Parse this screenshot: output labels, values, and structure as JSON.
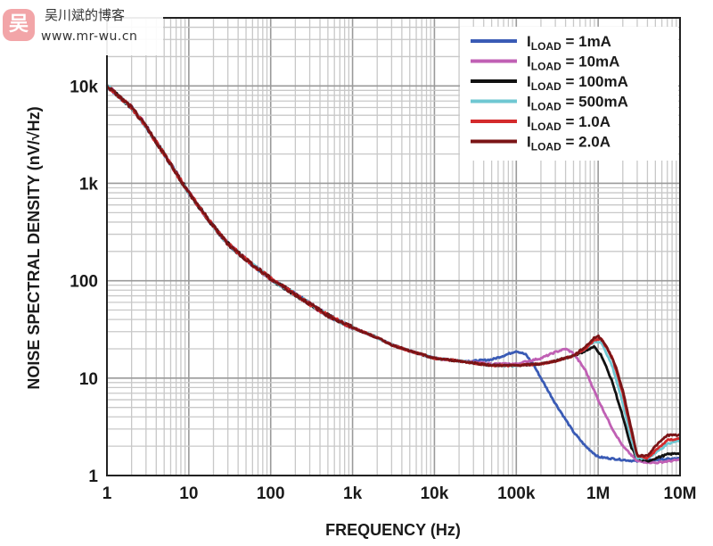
{
  "watermark": {
    "logo_char": "吴",
    "title": "吴川斌的博客",
    "url": "www.mr-wu.cn"
  },
  "chart_data": {
    "type": "line",
    "xlabel": "FREQUENCY (Hz)",
    "ylabel": "NOISE SPECTRAL DENSITY (nV/√Hz)",
    "x_scale": "log",
    "y_scale": "log",
    "xlim": [
      1,
      10000000
    ],
    "ylim": [
      1,
      50000
    ],
    "x_ticks": [
      {
        "value": 1,
        "label": "1"
      },
      {
        "value": 10,
        "label": "10"
      },
      {
        "value": 100,
        "label": "100"
      },
      {
        "value": 1000,
        "label": "1k"
      },
      {
        "value": 10000,
        "label": "10k"
      },
      {
        "value": 100000,
        "label": "100k"
      },
      {
        "value": 1000000,
        "label": "1M"
      },
      {
        "value": 10000000,
        "label": "10M"
      }
    ],
    "y_ticks": [
      {
        "value": 1,
        "label": "1"
      },
      {
        "value": 10,
        "label": "10"
      },
      {
        "value": 100,
        "label": "100"
      },
      {
        "value": 1000,
        "label": "1k"
      },
      {
        "value": 10000,
        "label": "10k"
      }
    ],
    "grid": true,
    "legend_position": "top-right",
    "series": [
      {
        "name": "1mA",
        "legend_main": "I",
        "legend_sub": "LOAD",
        "legend_rest": " = 1mA",
        "color": "#3a5bb5",
        "points": [
          [
            1,
            10000
          ],
          [
            2,
            6000
          ],
          [
            3,
            3800
          ],
          [
            5,
            2000
          ],
          [
            10,
            800
          ],
          [
            20,
            360
          ],
          [
            30,
            240
          ],
          [
            50,
            165
          ],
          [
            100,
            105
          ],
          [
            200,
            72
          ],
          [
            300,
            58
          ],
          [
            500,
            44
          ],
          [
            1000,
            33
          ],
          [
            2000,
            26
          ],
          [
            3000,
            22
          ],
          [
            5000,
            19
          ],
          [
            10000,
            16
          ],
          [
            20000,
            15
          ],
          [
            30000,
            15
          ],
          [
            50000,
            15.5
          ],
          [
            70000,
            17
          ],
          [
            100000,
            19
          ],
          [
            130000,
            17.5
          ],
          [
            160000,
            14
          ],
          [
            200000,
            10
          ],
          [
            300000,
            5.5
          ],
          [
            500000,
            2.8
          ],
          [
            700000,
            2
          ],
          [
            1000000,
            1.55
          ],
          [
            2000000,
            1.45
          ],
          [
            3000000,
            1.4
          ],
          [
            5000000,
            1.45
          ],
          [
            10000000,
            1.5
          ]
        ]
      },
      {
        "name": "10mA",
        "legend_main": "I",
        "legend_sub": "LOAD",
        "legend_rest": " = 10mA",
        "color": "#c060b4",
        "points": [
          [
            1,
            10000
          ],
          [
            2,
            6200
          ],
          [
            3,
            3900
          ],
          [
            5,
            2000
          ],
          [
            10,
            800
          ],
          [
            20,
            360
          ],
          [
            30,
            240
          ],
          [
            50,
            165
          ],
          [
            100,
            105
          ],
          [
            200,
            72
          ],
          [
            300,
            58
          ],
          [
            500,
            44
          ],
          [
            1000,
            33
          ],
          [
            2000,
            26
          ],
          [
            3000,
            22
          ],
          [
            5000,
            19
          ],
          [
            10000,
            16
          ],
          [
            20000,
            15
          ],
          [
            50000,
            14
          ],
          [
            100000,
            14
          ],
          [
            200000,
            16
          ],
          [
            300000,
            18.5
          ],
          [
            400000,
            20
          ],
          [
            500000,
            18
          ],
          [
            700000,
            12
          ],
          [
            1000000,
            6
          ],
          [
            1500000,
            3
          ],
          [
            2000000,
            2
          ],
          [
            3000000,
            1.4
          ],
          [
            5000000,
            1.35
          ],
          [
            10000000,
            1.45
          ]
        ]
      },
      {
        "name": "100mA",
        "legend_main": "I",
        "legend_sub": "LOAD",
        "legend_rest": " = 100mA",
        "color": "#111111",
        "points": [
          [
            1,
            10000
          ],
          [
            2,
            6000
          ],
          [
            3,
            3800
          ],
          [
            5,
            2000
          ],
          [
            10,
            800
          ],
          [
            20,
            360
          ],
          [
            30,
            240
          ],
          [
            50,
            165
          ],
          [
            100,
            105
          ],
          [
            200,
            72
          ],
          [
            300,
            58
          ],
          [
            500,
            44
          ],
          [
            1000,
            33
          ],
          [
            2000,
            26
          ],
          [
            3000,
            22
          ],
          [
            5000,
            19
          ],
          [
            10000,
            16
          ],
          [
            20000,
            15
          ],
          [
            50000,
            13.5
          ],
          [
            100000,
            13.5
          ],
          [
            200000,
            14
          ],
          [
            300000,
            15
          ],
          [
            500000,
            17
          ],
          [
            700000,
            19
          ],
          [
            900000,
            21
          ],
          [
            1100000,
            17
          ],
          [
            1500000,
            9
          ],
          [
            2000000,
            4
          ],
          [
            2500000,
            2
          ],
          [
            3000000,
            1.5
          ],
          [
            4000000,
            1.4
          ],
          [
            5000000,
            1.5
          ],
          [
            7000000,
            1.65
          ],
          [
            10000000,
            1.7
          ]
        ]
      },
      {
        "name": "500mA",
        "legend_main": "I",
        "legend_sub": "LOAD",
        "legend_rest": " = 500mA",
        "color": "#6fc7d2",
        "points": [
          [
            1,
            10000
          ],
          [
            2,
            6000
          ],
          [
            3,
            3800
          ],
          [
            5,
            2000
          ],
          [
            10,
            800
          ],
          [
            20,
            360
          ],
          [
            30,
            240
          ],
          [
            50,
            165
          ],
          [
            100,
            105
          ],
          [
            200,
            72
          ],
          [
            300,
            58
          ],
          [
            500,
            44
          ],
          [
            1000,
            33
          ],
          [
            2000,
            26
          ],
          [
            3000,
            22
          ],
          [
            5000,
            19
          ],
          [
            10000,
            16
          ],
          [
            20000,
            15
          ],
          [
            50000,
            13.5
          ],
          [
            100000,
            13.5
          ],
          [
            200000,
            14
          ],
          [
            300000,
            15
          ],
          [
            500000,
            17
          ],
          [
            700000,
            20
          ],
          [
            900000,
            24
          ],
          [
            1100000,
            23
          ],
          [
            1500000,
            13
          ],
          [
            2000000,
            5.5
          ],
          [
            2500000,
            2.5
          ],
          [
            3000000,
            1.5
          ],
          [
            4000000,
            1.5
          ],
          [
            5000000,
            1.7
          ],
          [
            7000000,
            2.1
          ],
          [
            10000000,
            2.3
          ]
        ]
      },
      {
        "name": "1.0A",
        "legend_main": "I",
        "legend_sub": "LOAD",
        "legend_rest": " = 1.0A",
        "color": "#d42a2c",
        "points": [
          [
            1,
            10000
          ],
          [
            2,
            6000
          ],
          [
            3,
            3800
          ],
          [
            5,
            2000
          ],
          [
            10,
            800
          ],
          [
            20,
            360
          ],
          [
            30,
            240
          ],
          [
            50,
            165
          ],
          [
            100,
            105
          ],
          [
            200,
            72
          ],
          [
            300,
            58
          ],
          [
            500,
            44
          ],
          [
            1000,
            33
          ],
          [
            2000,
            26
          ],
          [
            3000,
            22
          ],
          [
            5000,
            19
          ],
          [
            10000,
            16
          ],
          [
            20000,
            15
          ],
          [
            50000,
            13.5
          ],
          [
            100000,
            13.5
          ],
          [
            200000,
            14
          ],
          [
            300000,
            15
          ],
          [
            500000,
            17
          ],
          [
            700000,
            20
          ],
          [
            900000,
            25
          ],
          [
            1100000,
            25
          ],
          [
            1500000,
            16
          ],
          [
            2000000,
            7
          ],
          [
            2500000,
            3
          ],
          [
            3000000,
            1.6
          ],
          [
            4000000,
            1.5
          ],
          [
            5000000,
            1.8
          ],
          [
            7000000,
            2.3
          ],
          [
            10000000,
            2.4
          ]
        ]
      },
      {
        "name": "2.0A",
        "legend_main": "I",
        "legend_sub": "LOAD",
        "legend_rest": " = 2.0A",
        "color": "#7a1416",
        "points": [
          [
            1,
            10000
          ],
          [
            2,
            6000
          ],
          [
            3,
            3800
          ],
          [
            5,
            2000
          ],
          [
            10,
            800
          ],
          [
            20,
            360
          ],
          [
            30,
            240
          ],
          [
            50,
            165
          ],
          [
            100,
            105
          ],
          [
            200,
            72
          ],
          [
            300,
            58
          ],
          [
            500,
            44
          ],
          [
            1000,
            33
          ],
          [
            2000,
            26
          ],
          [
            3000,
            22
          ],
          [
            5000,
            19
          ],
          [
            10000,
            16
          ],
          [
            20000,
            15
          ],
          [
            50000,
            13.5
          ],
          [
            100000,
            13.5
          ],
          [
            200000,
            14
          ],
          [
            300000,
            15
          ],
          [
            500000,
            17
          ],
          [
            700000,
            21
          ],
          [
            900000,
            26
          ],
          [
            1000000,
            27
          ],
          [
            1200000,
            23
          ],
          [
            1600000,
            14
          ],
          [
            2000000,
            7.5
          ],
          [
            2500000,
            3.2
          ],
          [
            3000000,
            1.6
          ],
          [
            4000000,
            1.6
          ],
          [
            5000000,
            2
          ],
          [
            7000000,
            2.6
          ],
          [
            10000000,
            2.6
          ]
        ]
      }
    ]
  }
}
